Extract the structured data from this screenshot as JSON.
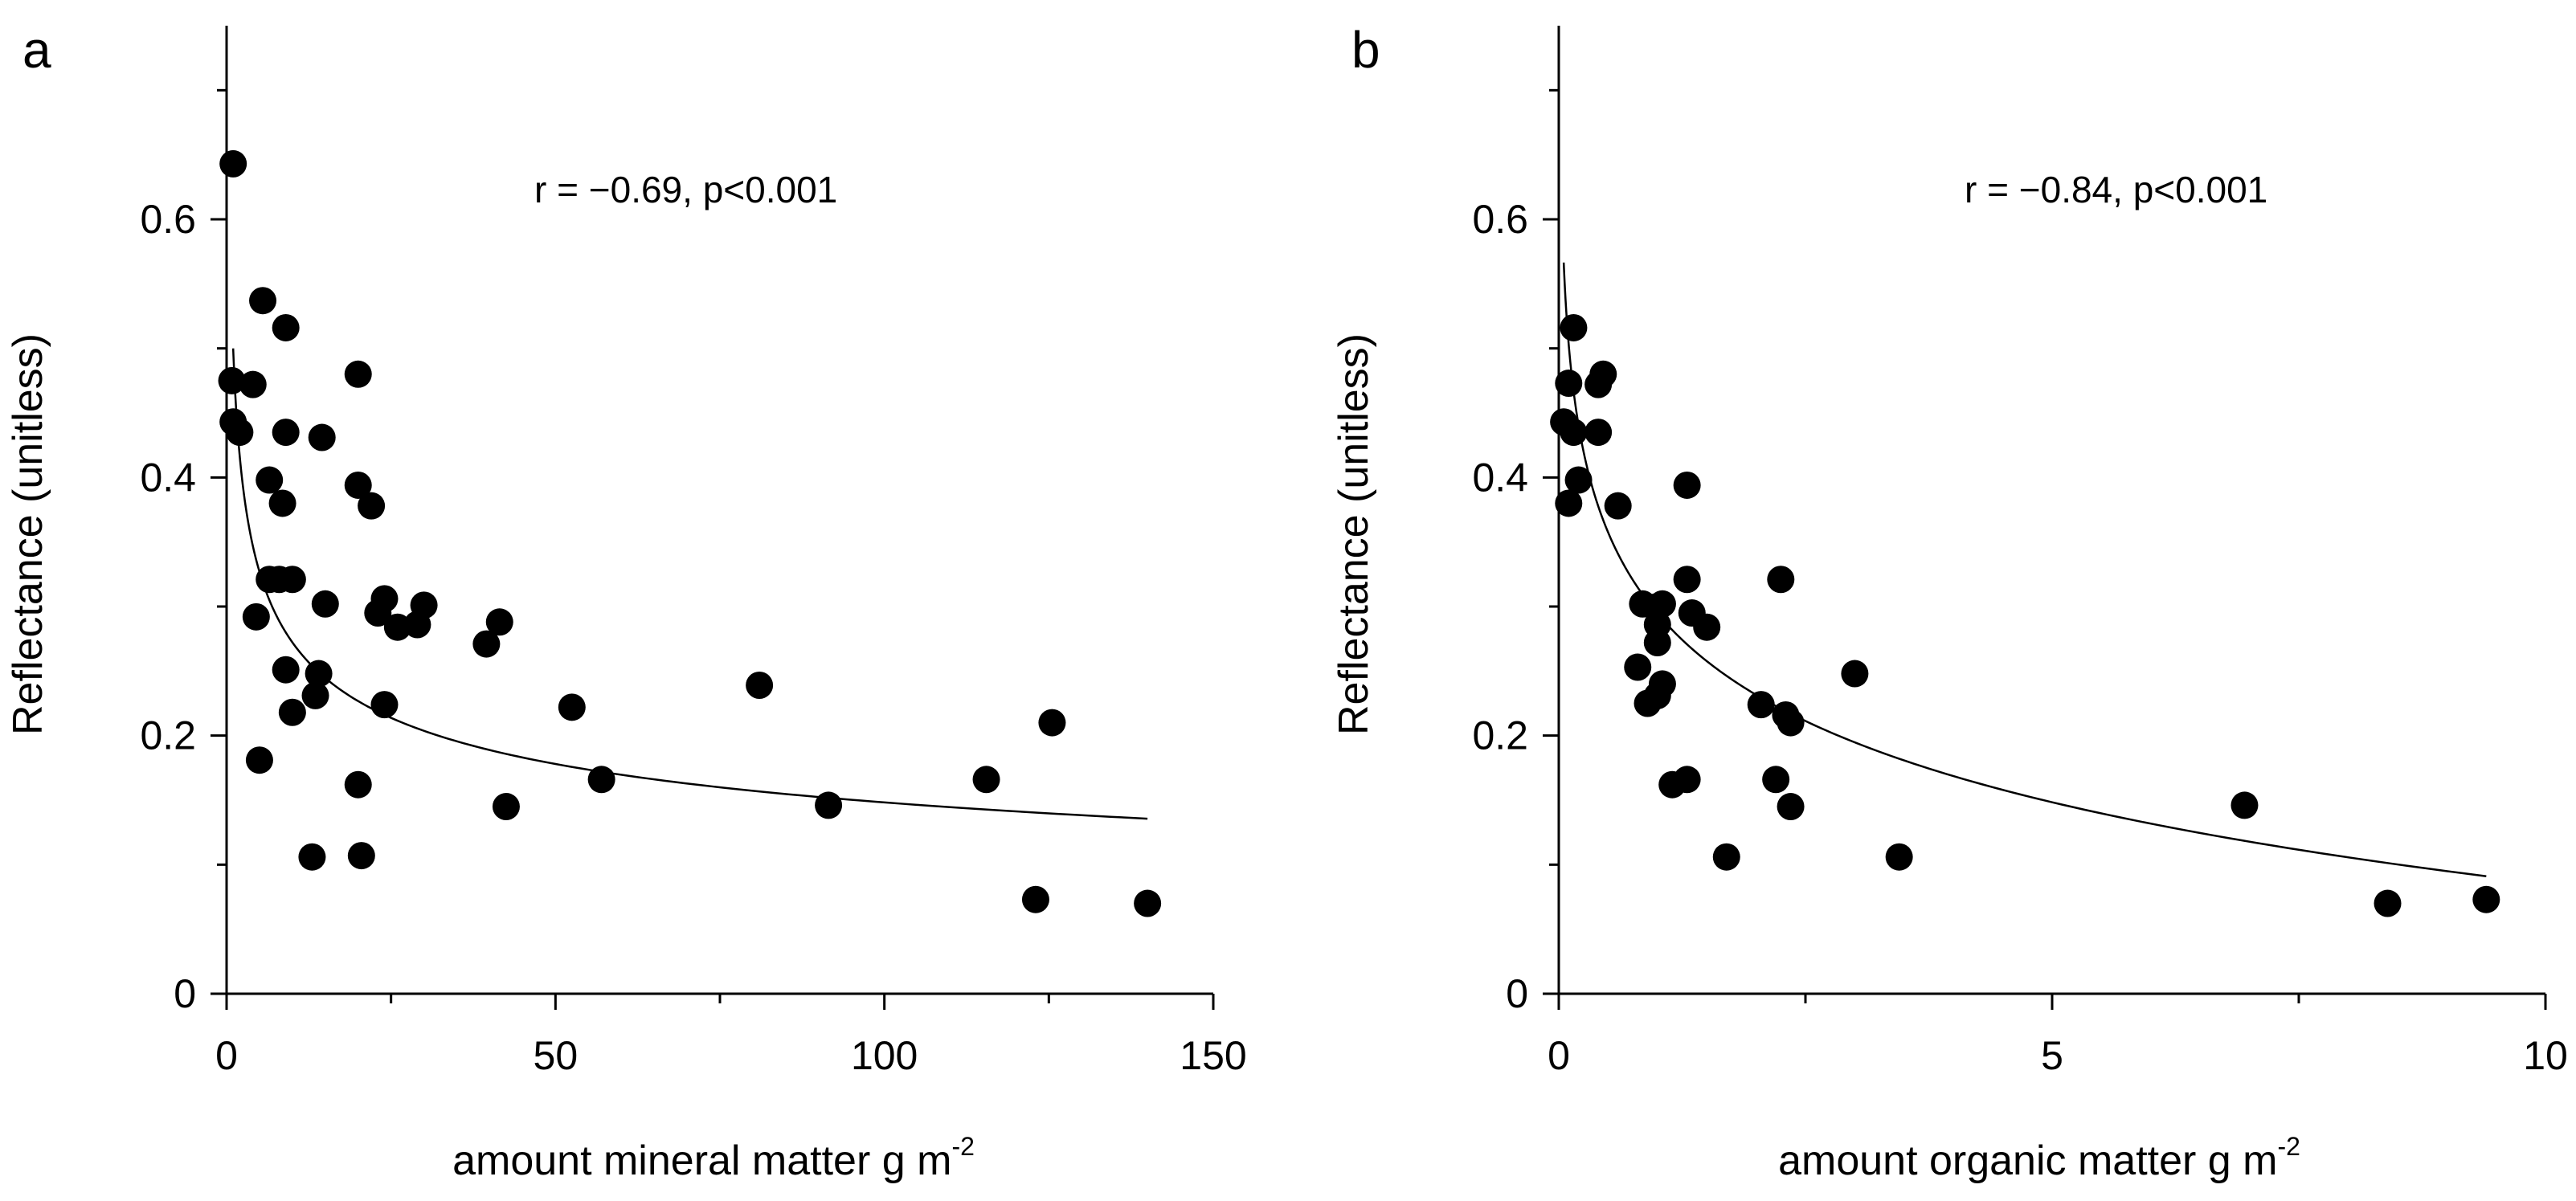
{
  "chart_data": [
    {
      "type": "scatter",
      "panel_label": "a",
      "title": "",
      "xlabel": "amount mineral matter g m",
      "xlabel_superscript": "-2",
      "ylabel": "Reflectance (unitless)",
      "xlim": [
        0,
        150
      ],
      "ylim": [
        0,
        0.75
      ],
      "xticks": [
        0,
        50,
        100,
        150
      ],
      "xtick_labels": [
        "0",
        "50",
        "100",
        "150"
      ],
      "yticks": [
        0,
        0.2,
        0.4,
        0.6
      ],
      "ytick_labels": [
        "0",
        "0.2",
        "0.4",
        "0.6"
      ],
      "annotation": "r = −0.69, p<0.001",
      "grid": false,
      "fit": {
        "type": "power",
        "a": 0.5,
        "b": -0.264,
        "x_range": [
          1,
          140
        ]
      },
      "points": [
        [
          1.0,
          0.643
        ],
        [
          0.8,
          0.475
        ],
        [
          1.0,
          0.443
        ],
        [
          2.0,
          0.435
        ],
        [
          4.0,
          0.472
        ],
        [
          5.5,
          0.537
        ],
        [
          9.0,
          0.516
        ],
        [
          6.5,
          0.398
        ],
        [
          9.0,
          0.435
        ],
        [
          8.5,
          0.38
        ],
        [
          6.5,
          0.321
        ],
        [
          8.0,
          0.321
        ],
        [
          10.0,
          0.321
        ],
        [
          4.5,
          0.292
        ],
        [
          9.0,
          0.251
        ],
        [
          10.0,
          0.218
        ],
        [
          5.0,
          0.181
        ],
        [
          14.5,
          0.431
        ],
        [
          20.0,
          0.48
        ],
        [
          20.0,
          0.394
        ],
        [
          22.0,
          0.378
        ],
        [
          15.0,
          0.302
        ],
        [
          24.0,
          0.306
        ],
        [
          23.0,
          0.295
        ],
        [
          26.0,
          0.284
        ],
        [
          29.0,
          0.286
        ],
        [
          30.0,
          0.301
        ],
        [
          14.0,
          0.248
        ],
        [
          13.5,
          0.231
        ],
        [
          24.0,
          0.224
        ],
        [
          20.0,
          0.162
        ],
        [
          13.0,
          0.106
        ],
        [
          20.5,
          0.107
        ],
        [
          39.5,
          0.271
        ],
        [
          41.5,
          0.288
        ],
        [
          42.5,
          0.145
        ],
        [
          52.5,
          0.222
        ],
        [
          57.0,
          0.166
        ],
        [
          81.0,
          0.239
        ],
        [
          91.5,
          0.146
        ],
        [
          115.5,
          0.166
        ],
        [
          123.0,
          0.073
        ],
        [
          125.5,
          0.21
        ],
        [
          140.0,
          0.07
        ]
      ]
    },
    {
      "type": "scatter",
      "panel_label": "b",
      "title": "",
      "xlabel": "amount organic matter g m",
      "xlabel_superscript": "-2",
      "ylabel": "Reflectance (unitless)",
      "xlim": [
        0,
        10
      ],
      "ylim": [
        0,
        0.75
      ],
      "xticks": [
        0,
        5,
        10
      ],
      "xtick_labels": [
        "0",
        "5",
        "10"
      ],
      "yticks": [
        0,
        0.2,
        0.4,
        0.6
      ],
      "ytick_labels": [
        "0",
        "0.2",
        "0.4",
        "0.6"
      ],
      "annotation": "r = −0.84, p<0.001",
      "grid": false,
      "fit": {
        "type": "log",
        "a": 0.2945,
        "b": -0.0908,
        "x_range": [
          0.05,
          9.4
        ]
      },
      "points": [
        [
          0.05,
          0.443
        ],
        [
          0.1,
          0.473
        ],
        [
          0.15,
          0.516
        ],
        [
          0.15,
          0.435
        ],
        [
          0.1,
          0.38
        ],
        [
          0.2,
          0.398
        ],
        [
          0.4,
          0.472
        ],
        [
          0.45,
          0.48
        ],
        [
          0.4,
          0.435
        ],
        [
          0.6,
          0.378
        ],
        [
          0.85,
          0.302
        ],
        [
          1.0,
          0.3
        ],
        [
          1.05,
          0.302
        ],
        [
          1.0,
          0.286
        ],
        [
          1.0,
          0.272
        ],
        [
          0.8,
          0.253
        ],
        [
          1.05,
          0.24
        ],
        [
          1.0,
          0.231
        ],
        [
          0.9,
          0.225
        ],
        [
          1.3,
          0.394
        ],
        [
          1.3,
          0.321
        ],
        [
          1.35,
          0.295
        ],
        [
          1.5,
          0.284
        ],
        [
          1.15,
          0.162
        ],
        [
          1.3,
          0.166
        ],
        [
          1.7,
          0.106
        ],
        [
          2.05,
          0.224
        ],
        [
          2.2,
          0.166
        ],
        [
          2.25,
          0.321
        ],
        [
          2.3,
          0.216
        ],
        [
          2.35,
          0.21
        ],
        [
          2.35,
          0.145
        ],
        [
          3.0,
          0.248
        ],
        [
          3.45,
          0.106
        ],
        [
          6.95,
          0.146
        ],
        [
          8.4,
          0.07
        ],
        [
          9.4,
          0.073
        ]
      ]
    }
  ]
}
